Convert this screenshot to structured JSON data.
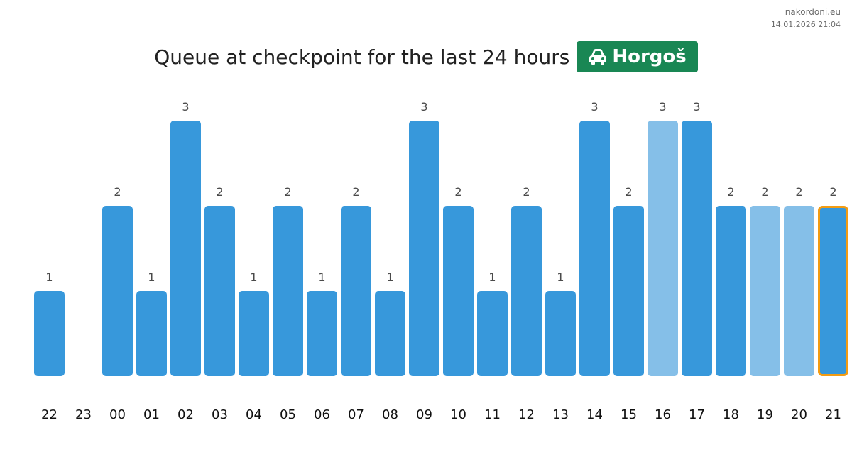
{
  "site": {
    "name": "nakordoni.eu",
    "timestamp": "14.01.2026 21:04"
  },
  "title": {
    "text": "Queue at checkpoint for the last 24 hours",
    "badge_label": "Horgoš",
    "badge_icon": "car-icon",
    "badge_color": "#198754"
  },
  "colors": {
    "bar": "#3798db",
    "bar_light": "#85bfe8",
    "highlight_border": "#f39c12"
  },
  "chart_data": {
    "type": "bar",
    "categories": [
      "22",
      "23",
      "00",
      "01",
      "02",
      "03",
      "04",
      "05",
      "06",
      "07",
      "08",
      "09",
      "10",
      "11",
      "12",
      "13",
      "14",
      "15",
      "16",
      "17",
      "18",
      "19",
      "20",
      "21"
    ],
    "values": [
      1,
      0,
      2,
      1,
      3,
      2,
      1,
      2,
      1,
      2,
      1,
      3,
      2,
      1,
      2,
      1,
      3,
      2,
      3,
      3,
      2,
      2,
      2,
      2
    ],
    "light_bars": [
      "16",
      "19",
      "20"
    ],
    "highlighted": "21",
    "title": "Queue at checkpoint for the last 24 hours",
    "ylim": [
      0,
      3
    ],
    "grid": false,
    "legend": "none"
  }
}
